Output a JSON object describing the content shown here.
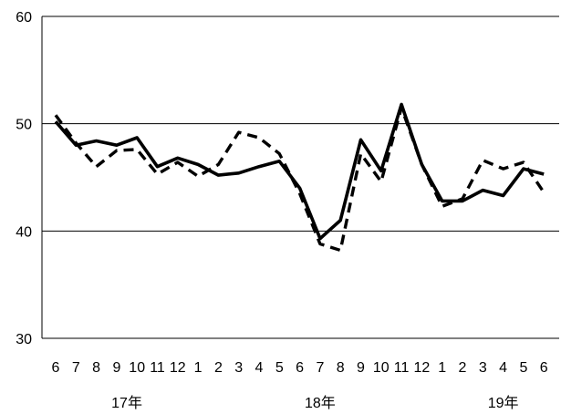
{
  "chart_data": {
    "type": "line",
    "title": "",
    "xlabel": "",
    "ylabel": "",
    "ylim": [
      30,
      60
    ],
    "yticks": [
      30,
      40,
      50,
      60
    ],
    "grid": "horizontal",
    "legend": "none",
    "x_tick_labels": [
      "6",
      "7",
      "8",
      "9",
      "10",
      "11",
      "12",
      "1",
      "2",
      "3",
      "4",
      "5",
      "6",
      "7",
      "8",
      "9",
      "10",
      "11",
      "12",
      "1",
      "2",
      "3",
      "4",
      "5",
      "6"
    ],
    "year_labels": [
      {
        "label": "17年",
        "index": 3.5
      },
      {
        "label": "18年",
        "index": 13
      },
      {
        "label": "19年",
        "index": 22
      }
    ],
    "series": [
      {
        "style": "solid",
        "color": "#000000",
        "values": [
          50.2,
          48.0,
          48.4,
          48.0,
          48.7,
          46.0,
          46.8,
          46.2,
          45.2,
          45.4,
          46.0,
          46.5,
          44.0,
          39.3,
          41.0,
          48.5,
          45.6,
          51.8,
          46.2,
          42.8,
          42.8,
          43.8,
          43.3,
          45.8,
          45.3
        ]
      },
      {
        "style": "dashed",
        "color": "#000000",
        "values": [
          50.8,
          48.2,
          46.0,
          47.5,
          47.6,
          45.3,
          46.4,
          45.1,
          46.2,
          49.2,
          48.7,
          47.2,
          43.5,
          38.8,
          38.2,
          47.2,
          44.6,
          51.5,
          46.2,
          42.3,
          43.0,
          46.6,
          45.8,
          46.4,
          43.6
        ]
      }
    ]
  }
}
